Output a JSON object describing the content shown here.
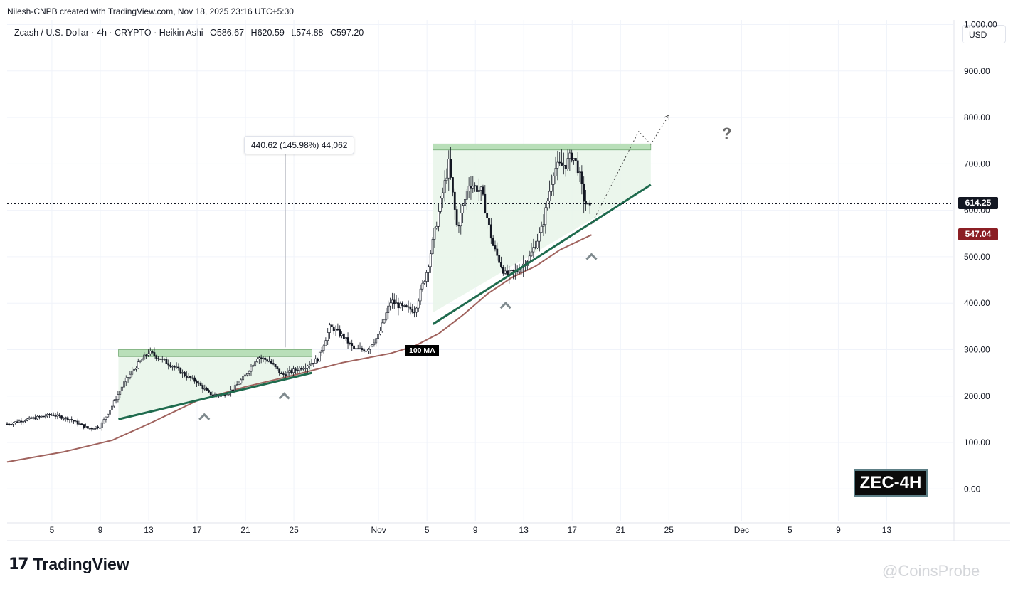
{
  "header": {
    "created_by": "Nilesh-CNPB created with TradingView.com, Nov 18, 2025 23:16 UTC+5:30"
  },
  "legend": {
    "symbol": "Zcash / U.S. Dollar · 4h · CRYPTO · Heikin Ashi",
    "open_label": "O",
    "open": "586.67",
    "high_label": "H",
    "high": "620.59",
    "low_label": "L",
    "low": "574.88",
    "close_label": "C",
    "close": "597.20"
  },
  "currency_button": "USD",
  "price_tags": {
    "last_price": "614.25",
    "last_price_color": "#131722",
    "ma_value": "547.04",
    "ma_color": "#8b1e24"
  },
  "annotations": {
    "measure": "440.62 (145.98%) 44,062",
    "ma_label": "100 MA",
    "question": "?",
    "ticker": "ZEC-4H"
  },
  "branding": {
    "logo_mark": "17",
    "logo_text": "TradingView",
    "watermark": "@CoinsProbe"
  },
  "colors": {
    "candle": "#131722",
    "ma_line": "#a0635e",
    "support": "#1f6b4e",
    "zone_fill": "#e8f5e9",
    "zone_top": "#b9dfb9",
    "last_price_line": "#131722"
  },
  "chart_data": {
    "type": "candlestick",
    "title": "",
    "ylabel": "",
    "xlabel": "",
    "ylim": [
      -70,
      1010
    ],
    "y_ticks": [
      "1,000.00",
      "900.00",
      "800.00",
      "700.00",
      "600.00",
      "500.00",
      "400.00",
      "300.00",
      "200.00",
      "100.00",
      "0.00"
    ],
    "y_tick_values": [
      1000,
      900,
      800,
      700,
      600,
      500,
      400,
      300,
      200,
      100,
      0
    ],
    "x_ticks": [
      "5",
      "9",
      "13",
      "17",
      "21",
      "25",
      "Nov",
      "5",
      "9",
      "13",
      "17",
      "21",
      "25",
      "Dec",
      "5",
      "9",
      "13"
    ],
    "x_tick_days": [
      4,
      8,
      12,
      16,
      20,
      24,
      31,
      35,
      39,
      43,
      47,
      51,
      55,
      61,
      65,
      69,
      73
    ],
    "x_range_days": [
      0.3,
      78.5
    ],
    "grid": true,
    "price_path": [
      [
        0.3,
        140
      ],
      [
        2,
        150
      ],
      [
        4,
        160
      ],
      [
        5.5,
        150
      ],
      [
        7,
        130
      ],
      [
        8,
        135
      ],
      [
        9,
        180
      ],
      [
        10,
        230
      ],
      [
        11,
        265
      ],
      [
        12,
        295
      ],
      [
        13,
        280
      ],
      [
        14,
        265
      ],
      [
        15,
        245
      ],
      [
        16,
        230
      ],
      [
        17,
        205
      ],
      [
        18,
        200
      ],
      [
        19,
        215
      ],
      [
        20,
        245
      ],
      [
        21,
        285
      ],
      [
        22,
        275
      ],
      [
        23,
        245
      ],
      [
        24,
        255
      ],
      [
        25,
        265
      ],
      [
        26,
        280
      ],
      [
        27,
        350
      ],
      [
        28,
        330
      ],
      [
        29,
        300
      ],
      [
        30,
        300
      ],
      [
        31,
        330
      ],
      [
        32,
        405
      ],
      [
        33,
        390
      ],
      [
        34,
        385
      ],
      [
        35,
        470
      ],
      [
        36,
        600
      ],
      [
        36.8,
        700
      ],
      [
        37.5,
        560
      ],
      [
        38.5,
        660
      ],
      [
        39.5,
        640
      ],
      [
        40.5,
        520
      ],
      [
        41.5,
        460
      ],
      [
        42.5,
        470
      ],
      [
        43.5,
        500
      ],
      [
        44.5,
        560
      ],
      [
        45.5,
        690
      ],
      [
        46.5,
        700
      ],
      [
        47,
        720
      ],
      [
        47.5,
        690
      ],
      [
        48,
        620
      ],
      [
        48.6,
        597
      ]
    ],
    "moving_average_100": {
      "name": "100 MA",
      "points": [
        [
          0.3,
          58
        ],
        [
          5,
          80
        ],
        [
          9,
          105
        ],
        [
          12,
          140
        ],
        [
          16,
          190
        ],
        [
          20,
          220
        ],
        [
          24,
          245
        ],
        [
          28,
          272
        ],
        [
          32,
          292
        ],
        [
          34,
          308
        ],
        [
          36,
          335
        ],
        [
          38,
          375
        ],
        [
          40,
          420
        ],
        [
          42,
          455
        ],
        [
          44,
          480
        ],
        [
          46,
          515
        ],
        [
          48.6,
          547
        ]
      ]
    },
    "support_line_1": [
      [
        9.5,
        150
      ],
      [
        25.5,
        250
      ]
    ],
    "support_line_2": [
      [
        35.5,
        355
      ],
      [
        53.5,
        655
      ]
    ],
    "consolidation_zone_1": {
      "x": [
        9.5,
        25.5
      ],
      "y_top": [
        285,
        300
      ],
      "y_bottom_path": [
        [
          9.5,
          150
        ],
        [
          25.5,
          250
        ]
      ]
    },
    "consolidation_zone_2": {
      "x": [
        35.5,
        53.5
      ],
      "y_top": [
        730,
        743
      ],
      "y_bottom_path": [
        [
          35.5,
          380
        ],
        [
          53.5,
          655
        ]
      ]
    },
    "measure_arrow": {
      "x": 23.3,
      "y_from": 305,
      "y_to": 745
    },
    "projection": [
      [
        48.6,
        570
      ],
      [
        52.5,
        770
      ],
      [
        53.5,
        742
      ],
      [
        55,
        805
      ]
    ],
    "higher_lows_markers": [
      [
        16.6,
        180
      ],
      [
        23.2,
        225
      ],
      [
        41.5,
        420
      ],
      [
        48.6,
        525
      ]
    ],
    "last_price": 614.25,
    "ma_current": 547.04
  }
}
